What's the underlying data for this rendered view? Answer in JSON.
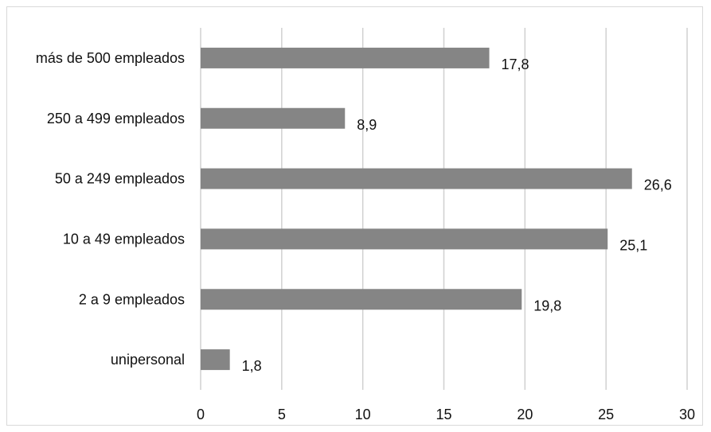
{
  "chart_data": {
    "type": "bar",
    "orientation": "horizontal",
    "categories": [
      "más de 500 empleados",
      "250 a 499 empleados",
      "50 a 249 empleados",
      "10 a 49 empleados",
      "2 a 9 empleados",
      "unipersonal"
    ],
    "values": [
      17.8,
      8.9,
      26.6,
      25.1,
      19.8,
      1.8
    ],
    "data_labels": [
      "17,8",
      "8,9",
      "26,6",
      "25,1",
      "19,8",
      "1,8"
    ],
    "x_ticks": [
      "0",
      "5",
      "10",
      "15",
      "20",
      "25",
      "30"
    ],
    "xlim": [
      0,
      30
    ],
    "grid": true,
    "legend": "none",
    "title": "",
    "xlabel": "",
    "ylabel": "",
    "colors": {
      "bar": "#858585",
      "grid": "#d0d0d0",
      "frame": "#d9d9d9",
      "text": "#111111"
    }
  }
}
